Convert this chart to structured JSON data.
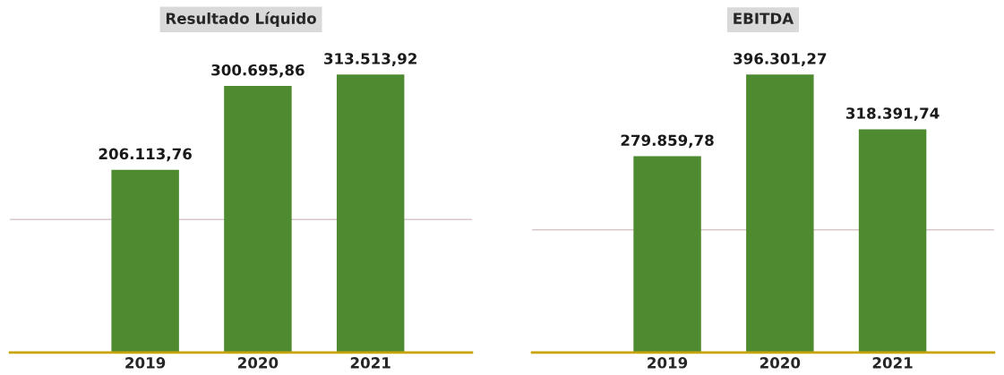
{
  "chart_data": [
    {
      "type": "bar",
      "title": "Resultado Líquido",
      "categories": [
        "2019",
        "2020",
        "2021"
      ],
      "values": [
        206113.76,
        300695.86,
        313513.92
      ],
      "value_labels": [
        "206.113,76",
        "300.695,86",
        "313.513,92"
      ],
      "color": "#4e8a30",
      "ref_lines": [
        {
          "axis": "y",
          "value": 150000,
          "color": "#d8c8c8"
        }
      ],
      "tick_labels": "x"
    },
    {
      "type": "bar",
      "title": "EBITDA",
      "categories": [
        "2019",
        "2020",
        "2021"
      ],
      "values": [
        279859.78,
        396301.27,
        318391.74
      ],
      "value_labels": [
        "279.859,78",
        "396.301,27",
        "318.391,74"
      ],
      "color": "#4e8a30",
      "ref_lines": [
        {
          "axis": "y",
          "value": 175000,
          "color": "#d8c8c8"
        }
      ],
      "tick_labels": "x"
    }
  ]
}
